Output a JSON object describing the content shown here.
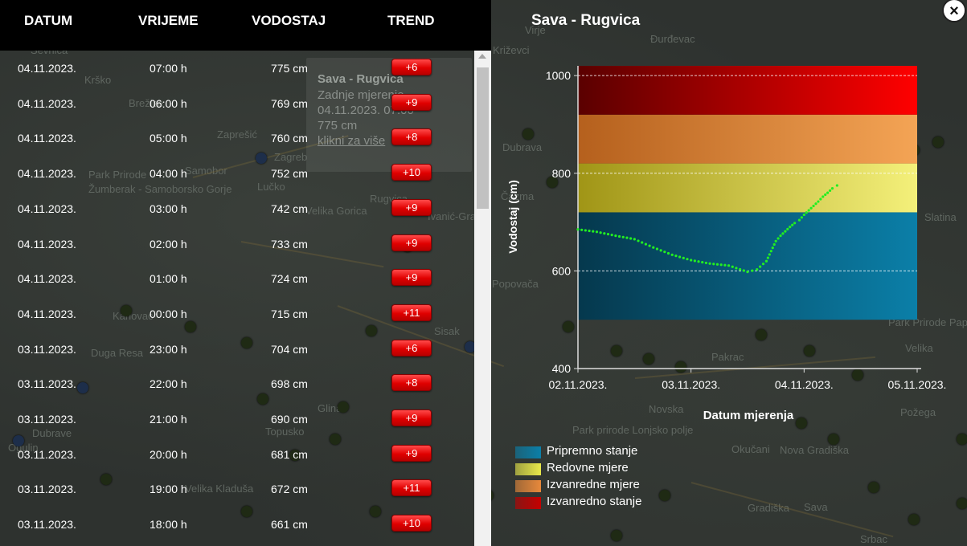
{
  "table": {
    "headers": {
      "date": "DATUM",
      "time": "VRIJEME",
      "level": "VODOSTAJ",
      "trend": "TREND"
    },
    "rows": [
      {
        "date": "04.11.2023.",
        "time": "07:00 h",
        "level": "775 cm",
        "trend": "+6"
      },
      {
        "date": "04.11.2023.",
        "time": "06:00 h",
        "level": "769 cm",
        "trend": "+9"
      },
      {
        "date": "04.11.2023.",
        "time": "05:00 h",
        "level": "760 cm",
        "trend": "+8"
      },
      {
        "date": "04.11.2023.",
        "time": "04:00 h",
        "level": "752 cm",
        "trend": "+10"
      },
      {
        "date": "04.11.2023.",
        "time": "03:00 h",
        "level": "742 cm",
        "trend": "+9"
      },
      {
        "date": "04.11.2023.",
        "time": "02:00 h",
        "level": "733 cm",
        "trend": "+9"
      },
      {
        "date": "04.11.2023.",
        "time": "01:00 h",
        "level": "724 cm",
        "trend": "+9"
      },
      {
        "date": "04.11.2023.",
        "time": "00:00 h",
        "level": "715 cm",
        "trend": "+11"
      },
      {
        "date": "03.11.2023.",
        "time": "23:00 h",
        "level": "704 cm",
        "trend": "+6"
      },
      {
        "date": "03.11.2023.",
        "time": "22:00 h",
        "level": "698 cm",
        "trend": "+8"
      },
      {
        "date": "03.11.2023.",
        "time": "21:00 h",
        "level": "690 cm",
        "trend": "+9"
      },
      {
        "date": "03.11.2023.",
        "time": "20:00 h",
        "level": "681 cm",
        "trend": "+9"
      },
      {
        "date": "03.11.2023.",
        "time": "19:00 h",
        "level": "672 cm",
        "trend": "+11"
      },
      {
        "date": "03.11.2023.",
        "time": "18:00 h",
        "level": "661 cm",
        "trend": "+10"
      }
    ]
  },
  "popup": {
    "title": "Sava - Rugvica",
    "line1": "Zadnje mjerenje",
    "line2": "04.11.2023. 07:00",
    "line3": "775 cm",
    "link": "klikni za više"
  },
  "map_labels": [
    "Sevnica",
    "Krško",
    "Brežice",
    "Zaprešić",
    "Zagreb",
    "Samobor",
    "Park Prirode",
    "Žumberak - Samoborsko Gorje",
    "Lučko",
    "Velika Gorica",
    "Rugvica",
    "Ivanić-Grad",
    "Karlovac",
    "Duga Resa",
    "Sisak",
    "Glina",
    "Topusko",
    "Dubrave",
    "Ogulin",
    "Velika Kladuša",
    "Virje",
    "Đurđevac",
    "Križevci",
    "Dubrava",
    "Čazma",
    "Slatina",
    "Popovača",
    "Park Prirode Papuk",
    "Velika",
    "Pakrac",
    "Novska",
    "Požega",
    "Park prirode Lonjsko polje",
    "Okučani",
    "Nova Gradiška",
    "Gradiška",
    "Sava",
    "Srbac"
  ],
  "chart": {
    "title": "Sava - Rugvica",
    "close_label": "×",
    "legend": [
      {
        "label": "Pripremno stanje",
        "color": "#0b7fa8"
      },
      {
        "label": "Redovne mjere",
        "color": "#e8e84a"
      },
      {
        "label": "Izvanredne mjere",
        "color": "#e8893b"
      },
      {
        "label": "Izvanredno stanje",
        "color": "#c40000"
      }
    ]
  },
  "chart_data": {
    "type": "line",
    "title": "",
    "xlabel": "Datum mjerenja",
    "ylabel": "Vodostaj (cm)",
    "x_ticks": [
      "02.11.2023.",
      "03.11.2023.",
      "04.11.2023.",
      "05.11.2023."
    ],
    "y_ticks": [
      400,
      600,
      800,
      1000
    ],
    "xlim": [
      "02.11.2023. 00:00",
      "05.11.2023. 00:00"
    ],
    "ylim": [
      400,
      1020
    ],
    "bands": [
      {
        "name": "Pripremno stanje",
        "from": 500,
        "to": 720,
        "color": "#0b7fa8"
      },
      {
        "name": "Redovne mjere",
        "from": 720,
        "to": 820,
        "color": "#e8e84a"
      },
      {
        "name": "Izvanredne mjere",
        "from": 820,
        "to": 920,
        "color": "#e8893b"
      },
      {
        "name": "Izvanredno stanje",
        "from": 920,
        "to": 1020,
        "color": "#c40000"
      }
    ],
    "series": [
      {
        "color": "#22ee22",
        "x": [
          "02.11.2023. 00:00",
          "02.11.2023. 04:00",
          "02.11.2023. 08:00",
          "02.11.2023. 12:00",
          "02.11.2023. 16:00",
          "02.11.2023. 20:00",
          "03.11.2023. 00:00",
          "03.11.2023. 04:00",
          "03.11.2023. 08:00",
          "03.11.2023. 12:00",
          "03.11.2023. 14:00",
          "03.11.2023. 16:00",
          "03.11.2023. 18:00",
          "03.11.2023. 19:00",
          "03.11.2023. 20:00",
          "03.11.2023. 21:00",
          "03.11.2023. 22:00",
          "03.11.2023. 23:00",
          "04.11.2023. 00:00",
          "04.11.2023. 01:00",
          "04.11.2023. 02:00",
          "04.11.2023. 03:00",
          "04.11.2023. 04:00",
          "04.11.2023. 05:00",
          "04.11.2023. 06:00",
          "04.11.2023. 07:00"
        ],
        "y": [
          685,
          680,
          672,
          665,
          648,
          633,
          622,
          615,
          611,
          598,
          603,
          620,
          661,
          672,
          681,
          690,
          698,
          704,
          715,
          724,
          733,
          742,
          752,
          760,
          769,
          775
        ]
      }
    ]
  }
}
